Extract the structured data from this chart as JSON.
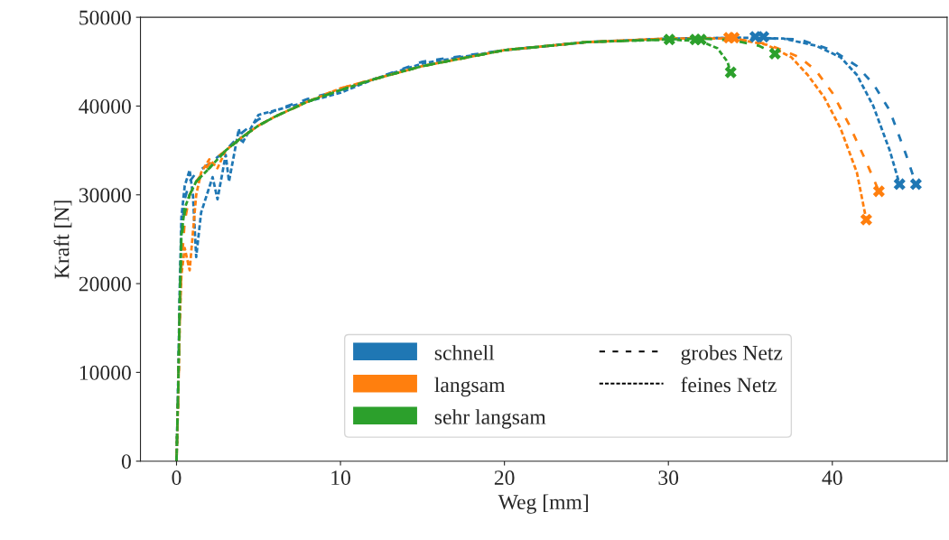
{
  "chart_data": {
    "type": "line",
    "xlabel": "Weg [mm]",
    "ylabel": "Kraft [N]",
    "xlim": [
      -2.2,
      47
    ],
    "ylim": [
      0,
      50000
    ],
    "xticks": [
      0,
      10,
      20,
      30,
      40
    ],
    "yticks": [
      0,
      10000,
      20000,
      30000,
      40000,
      50000
    ],
    "grid": false,
    "legend": "bottom",
    "annotations": [
      "grobes Netz",
      "feines Netz"
    ],
    "series": [
      {
        "name": "schnell",
        "color": "#1f77b4",
        "line_style": "dashed",
        "x": [
          0,
          0.1,
          0.2,
          0.3,
          0.5,
          0.8,
          1.2,
          2,
          3,
          4,
          5,
          6,
          8,
          10,
          12,
          15,
          20,
          25,
          30,
          35,
          38,
          40,
          41.5,
          42.5,
          43.5,
          44.5,
          45.1
        ],
        "values": [
          0,
          8000,
          18000,
          26000,
          29500,
          31500,
          32500,
          33500,
          35000,
          37000,
          38500,
          39500,
          40800,
          41800,
          43000,
          45000,
          46300,
          47200,
          47600,
          47700,
          47500,
          46300,
          44500,
          42500,
          39500,
          34500,
          31200
        ]
      },
      {
        "color": "#1f77b4",
        "line_style": "dotted",
        "x": [
          0,
          0.1,
          0.2,
          0.3,
          0.5,
          0.8,
          1,
          1.2,
          1.5,
          2.2,
          2.5,
          3,
          3.2,
          3.8,
          4,
          5,
          6,
          8,
          10,
          12,
          15,
          20,
          25,
          30,
          35,
          37,
          39,
          40.5,
          41.5,
          42.5,
          43.5,
          44.1
        ],
        "values": [
          0,
          9000,
          20000,
          27500,
          31000,
          32800,
          30000,
          23000,
          28000,
          32000,
          29500,
          34500,
          31500,
          37400,
          35800,
          39000,
          39500,
          40500,
          41500,
          43000,
          44800,
          46300,
          47200,
          47600,
          47700,
          47600,
          46800,
          45500,
          43500,
          40000,
          35000,
          31200
        ]
      },
      {
        "name": "langsam",
        "color": "#ff7f0e",
        "line_style": "dashed",
        "x": [
          0,
          0.1,
          0.2,
          0.3,
          0.5,
          0.8,
          1.2,
          2,
          3,
          4,
          5,
          6,
          8,
          10,
          12,
          15,
          20,
          25,
          30,
          34,
          36,
          38,
          39,
          40,
          41,
          42,
          42.84
        ],
        "values": [
          0,
          7000,
          16000,
          22000,
          27000,
          30000,
          31500,
          33500,
          35000,
          36500,
          37800,
          38800,
          40500,
          42000,
          43000,
          44500,
          46300,
          47200,
          47600,
          47600,
          47000,
          45500,
          44000,
          41500,
          38000,
          34000,
          30400
        ]
      },
      {
        "color": "#ff7f0e",
        "line_style": "dotted",
        "x": [
          0,
          0.1,
          0.2,
          0.3,
          0.5,
          0.8,
          1.2,
          1.5,
          2,
          2.5,
          3,
          4,
          5,
          6,
          8,
          10,
          12,
          15,
          20,
          25,
          30,
          34,
          36,
          37.5,
          38.5,
          39.5,
          40.5,
          41.5,
          42.07
        ],
        "values": [
          0,
          7000,
          16000,
          21000,
          24000,
          21500,
          30000,
          32500,
          34000,
          33000,
          35000,
          36500,
          37800,
          38800,
          40500,
          42000,
          43000,
          44500,
          46300,
          47200,
          47600,
          47600,
          46900,
          45500,
          43500,
          41000,
          37500,
          32500,
          27200
        ]
      },
      {
        "name": "sehr langsam",
        "color": "#2ca02c",
        "line_style": "dashed",
        "x": [
          0,
          0.1,
          0.2,
          0.3,
          0.5,
          0.8,
          1.2,
          2,
          3,
          4,
          5,
          6,
          8,
          10,
          12,
          15,
          20,
          25,
          30,
          32,
          34,
          35.5,
          36.5
        ],
        "values": [
          0,
          8000,
          18000,
          25000,
          28000,
          30000,
          31500,
          33000,
          35000,
          36500,
          37800,
          38800,
          40500,
          41800,
          43000,
          44500,
          46300,
          47200,
          47500,
          47600,
          47400,
          46800,
          45900
        ]
      },
      {
        "color": "#2ca02c",
        "line_style": "dotted",
        "x": [
          0,
          0.1,
          0.2,
          0.3,
          0.5,
          0.8,
          1.2,
          2,
          3,
          4,
          5,
          6,
          8,
          10,
          12,
          15,
          20,
          25,
          30,
          32,
          33,
          33.6,
          33.8
        ],
        "values": [
          0,
          8000,
          18000,
          25500,
          28500,
          30000,
          31500,
          33000,
          35000,
          36500,
          37800,
          38800,
          40500,
          41800,
          43000,
          44500,
          46300,
          47200,
          47500,
          47300,
          46500,
          45000,
          43800
        ]
      },
      {
        "type": "scatter",
        "marker": "cross",
        "color": "#1f77b4",
        "x": [
          35.3,
          35.8,
          44.1,
          45.1
        ],
        "values": [
          47800,
          47800,
          31200,
          31200
        ]
      },
      {
        "type": "scatter",
        "marker": "cross",
        "color": "#ff7f0e",
        "x": [
          33.7,
          34.0,
          42.07,
          42.84
        ],
        "values": [
          47700,
          47700,
          27200,
          30400
        ]
      },
      {
        "type": "scatter",
        "marker": "cross",
        "color": "#2ca02c",
        "x": [
          30.06,
          31.65,
          31.98,
          33.8,
          36.5
        ],
        "values": [
          47500,
          47500,
          47500,
          43800,
          45900
        ]
      }
    ]
  }
}
